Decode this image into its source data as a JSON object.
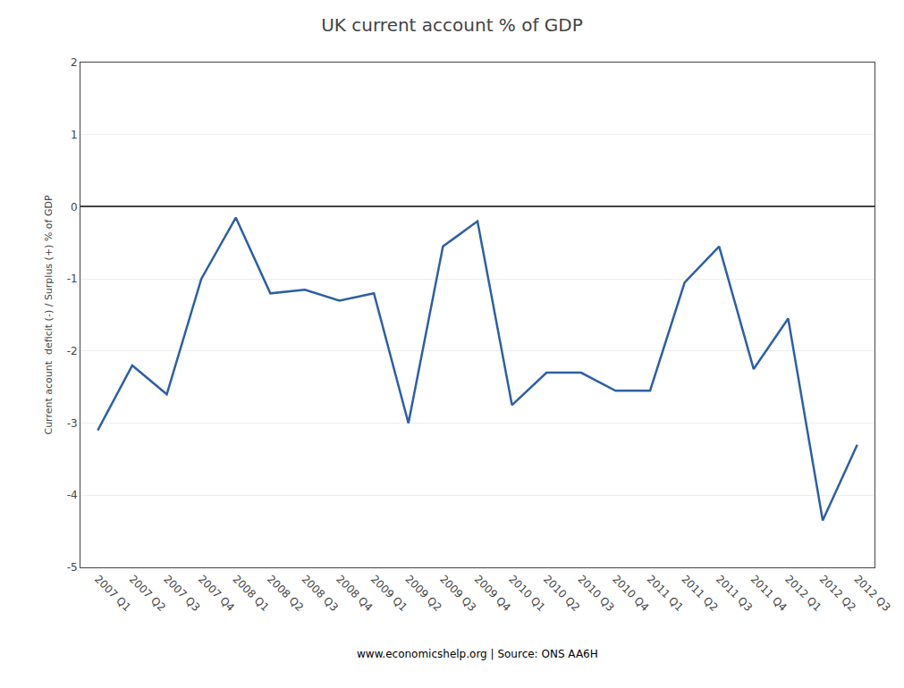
{
  "chart_data": {
    "type": "line",
    "title": "UK current account % of GDP",
    "ylabel": "Current acount  deficit (-) / Surplus (+) % of GDP",
    "annotations": [
      "www.economicshelp.org | Source: ONS AA6H"
    ],
    "categories": [
      "2007 Q1",
      "2007 Q2",
      "2007 Q3",
      "2007 Q4",
      "2008 Q1",
      "2008 Q2",
      "2008 Q3",
      "2008 Q4",
      "2009 Q1",
      "2009 Q2",
      "2009 Q3",
      "2009 Q4",
      "2010 Q1",
      "2010 Q2",
      "2010 Q3",
      "2010 Q4",
      "2011 Q1",
      "2011 Q2",
      "2011 Q3",
      "2011 Q4",
      "2012 Q1",
      "2012 Q2",
      "2012 Q3"
    ],
    "values": [
      -3.1,
      -2.2,
      -2.6,
      -1.0,
      -0.15,
      -1.2,
      -1.15,
      -1.3,
      -1.2,
      -3.0,
      -0.55,
      -0.2,
      -2.75,
      -2.3,
      -2.3,
      -2.55,
      -2.55,
      -1.05,
      -0.55,
      -2.25,
      -1.55,
      -4.35,
      -3.3
    ],
    "color": "#2E5FA3",
    "ylim": [
      -5,
      2
    ],
    "yticks": [
      -5,
      -4,
      -3,
      -2,
      -1,
      0,
      1,
      2
    ],
    "grid": true
  }
}
